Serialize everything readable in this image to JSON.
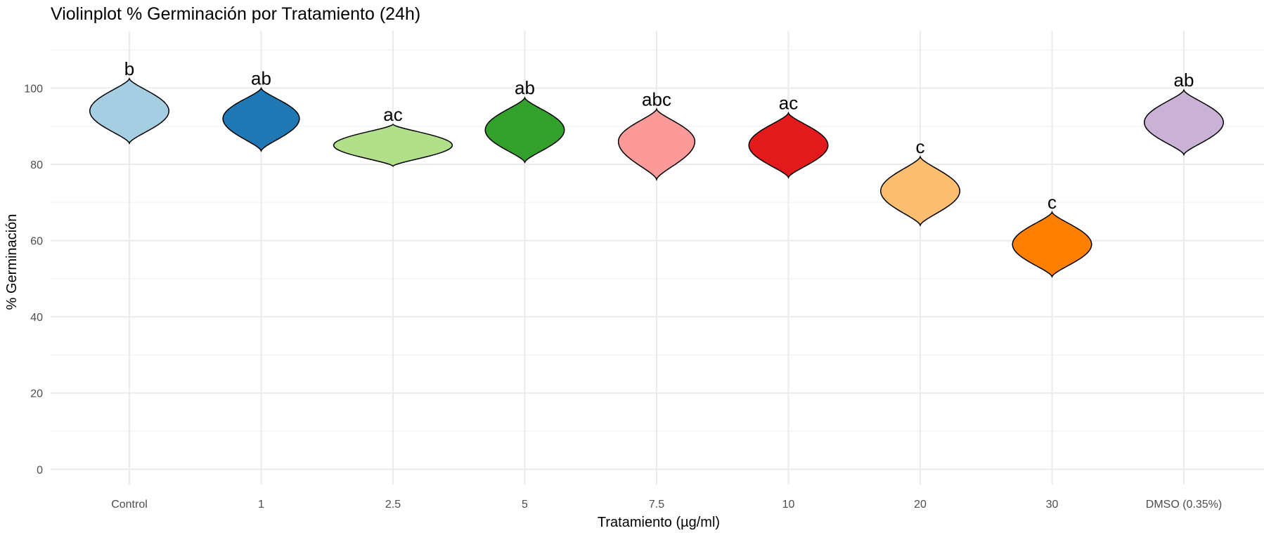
{
  "chart_data": {
    "type": "violin",
    "title": "Violinplot % Germinación por Tratamiento (24h)",
    "xlabel": "Tratamiento (µg/ml)",
    "ylabel": "% Germinación",
    "ylim": [
      -4,
      115
    ],
    "yticks": [
      0,
      20,
      40,
      60,
      80,
      100
    ],
    "grid": true,
    "legend": "none",
    "categories": [
      "Control",
      "1",
      "2.5",
      "5",
      "7.5",
      "10",
      "20",
      "30",
      "DMSO (0.35%)"
    ],
    "violins": [
      {
        "category": "Control",
        "min": 85.5,
        "max": 102.5,
        "center": 94,
        "maxWidth": 0.6,
        "color": "#A6CEE3",
        "label": "b"
      },
      {
        "category": "1",
        "min": 83.5,
        "max": 100.0,
        "center": 92,
        "maxWidth": 0.58,
        "color": "#1F78B4",
        "label": "ab"
      },
      {
        "category": "2.5",
        "min": 79.5,
        "max": 90.5,
        "center": 85,
        "maxWidth": 0.9,
        "color": "#B2DF8A",
        "label": "ac"
      },
      {
        "category": "5",
        "min": 80.5,
        "max": 97.5,
        "center": 89,
        "maxWidth": 0.6,
        "color": "#33A02C",
        "label": "ab"
      },
      {
        "category": "7.5",
        "min": 76.0,
        "max": 94.5,
        "center": 86,
        "maxWidth": 0.58,
        "color": "#FB9A99",
        "label": "abc"
      },
      {
        "category": "10",
        "min": 76.5,
        "max": 93.5,
        "center": 85,
        "maxWidth": 0.6,
        "color": "#E31A1C",
        "label": "ac"
      },
      {
        "category": "20",
        "min": 64.0,
        "max": 82.0,
        "center": 73,
        "maxWidth": 0.6,
        "color": "#FDBF6F",
        "label": "c"
      },
      {
        "category": "30",
        "min": 50.5,
        "max": 67.5,
        "center": 59,
        "maxWidth": 0.6,
        "color": "#FF7F00",
        "label": "c"
      },
      {
        "category": "DMSO (0.35%)",
        "min": 82.5,
        "max": 99.5,
        "center": 91,
        "maxWidth": 0.6,
        "color": "#CAB2D6",
        "label": "ab"
      }
    ]
  }
}
